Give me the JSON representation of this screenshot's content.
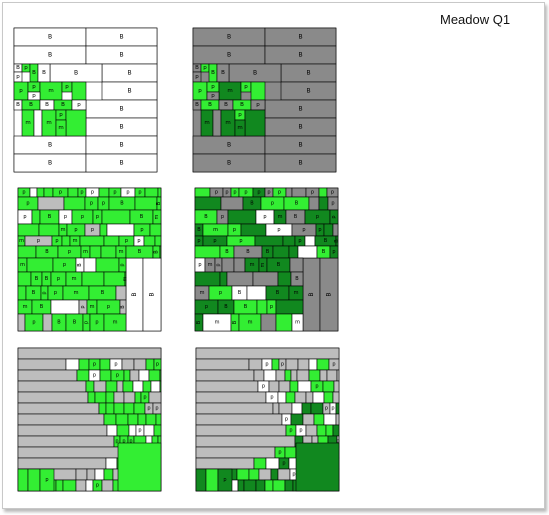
{
  "title": "Meadow Q1",
  "legend_letters": {
    "building": "B",
    "plot": "p",
    "meadow": "m"
  },
  "colors": {
    "building_light": "#ffffff",
    "building_dark": "#8a8a8a",
    "green": "#33ee33",
    "dark_green": "#11881f",
    "light_gray": "#bdbdbd",
    "outline": "#000000"
  },
  "panels": [
    {
      "id": "p1",
      "theme": "light",
      "style": "blocks-small"
    },
    {
      "id": "p2",
      "theme": "dark",
      "style": "blocks-small"
    },
    {
      "id": "p3",
      "theme": "light",
      "style": "blocks-large"
    },
    {
      "id": "p4",
      "theme": "dark",
      "style": "blocks-large"
    },
    {
      "id": "p5",
      "theme": "light",
      "style": "stripes"
    },
    {
      "id": "p6",
      "theme": "dark",
      "style": "stripes"
    }
  ]
}
